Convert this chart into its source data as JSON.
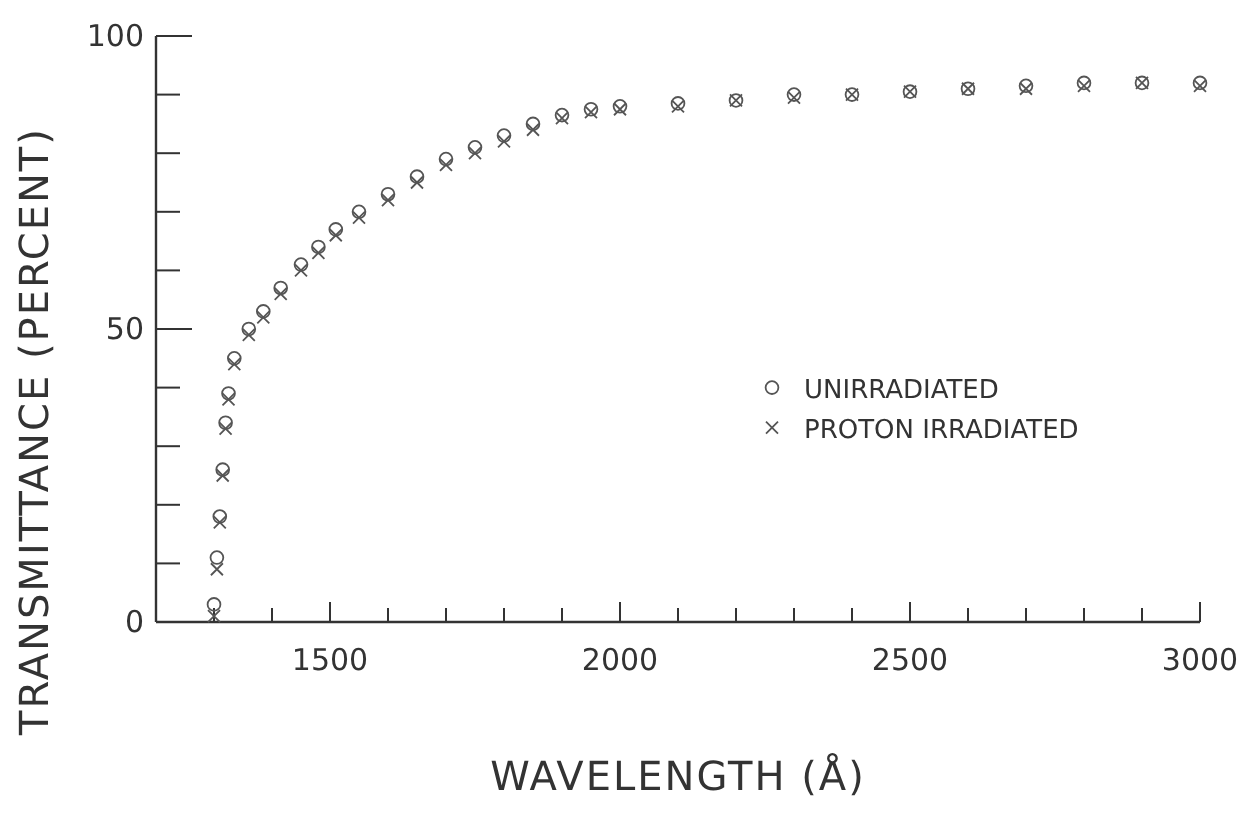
{
  "chart_data": {
    "type": "scatter",
    "xlabel": "WAVELENGTH (Å)",
    "ylabel": "TRANSMITTANCE (PERCENT)",
    "xlim": [
      1200,
      3000
    ],
    "ylim": [
      0,
      100
    ],
    "xticks": [
      {
        "value": 1300,
        "label": null
      },
      {
        "value": 1400,
        "label": null
      },
      1500,
      {
        "value": 1600,
        "label": null
      },
      {
        "value": 1700,
        "label": null
      },
      {
        "value": 1800,
        "label": null
      },
      {
        "value": 1900,
        "label": null
      },
      2000,
      {
        "value": 2100,
        "label": null
      },
      {
        "value": 2200,
        "label": null
      },
      {
        "value": 2300,
        "label": null
      },
      {
        "value": 2400,
        "label": null
      },
      2500,
      {
        "value": 2600,
        "label": null
      },
      {
        "value": 2700,
        "label": null
      },
      {
        "value": 2800,
        "label": null
      },
      {
        "value": 2900,
        "label": null
      },
      3000
    ],
    "yticks": [
      0,
      {
        "value": 10,
        "label": null
      },
      {
        "value": 20,
        "label": null
      },
      {
        "value": 30,
        "label": null
      },
      {
        "value": 40,
        "label": null
      },
      50,
      {
        "value": 60,
        "label": null
      },
      {
        "value": 70,
        "label": null
      },
      {
        "value": 80,
        "label": null
      },
      {
        "value": 90,
        "label": null
      },
      100
    ],
    "grid": false,
    "legend": "right",
    "series": [
      {
        "name": "UNIRRADIATED",
        "color": "#555555",
        "marker": "circle",
        "x": [
          1300,
          1305,
          1310,
          1315,
          1320,
          1325,
          1335,
          1360,
          1385,
          1415,
          1450,
          1480,
          1510,
          1550,
          1600,
          1650,
          1700,
          1750,
          1800,
          1850,
          1900,
          1950,
          2000,
          2100,
          2200,
          2300,
          2400,
          2500,
          2600,
          2700,
          2800,
          2900,
          3000
        ],
        "values": [
          3,
          11,
          18,
          26,
          34,
          39,
          45,
          50,
          53,
          57,
          61,
          64,
          67,
          70,
          73,
          76,
          79,
          81,
          83,
          85,
          86.5,
          87.5,
          88,
          88.5,
          89,
          90,
          90,
          90.5,
          91,
          91.5,
          92,
          92,
          92
        ]
      },
      {
        "name": "PROTON IRRADIATED",
        "color": "#555555",
        "marker": "cross",
        "x": [
          1300,
          1305,
          1310,
          1315,
          1320,
          1325,
          1335,
          1360,
          1385,
          1415,
          1450,
          1480,
          1510,
          1550,
          1600,
          1650,
          1700,
          1750,
          1800,
          1850,
          1900,
          1950,
          2000,
          2100,
          2200,
          2300,
          2400,
          2500,
          2600,
          2700,
          2800,
          2900,
          3000
        ],
        "values": [
          1,
          9,
          17,
          25,
          33,
          38,
          44,
          49,
          52,
          56,
          60,
          63,
          66,
          69,
          72,
          75,
          78,
          80,
          82,
          84,
          86,
          87,
          87.5,
          88,
          89,
          89.5,
          90,
          90.5,
          91,
          91,
          91.5,
          92,
          91.5
        ]
      }
    ]
  }
}
